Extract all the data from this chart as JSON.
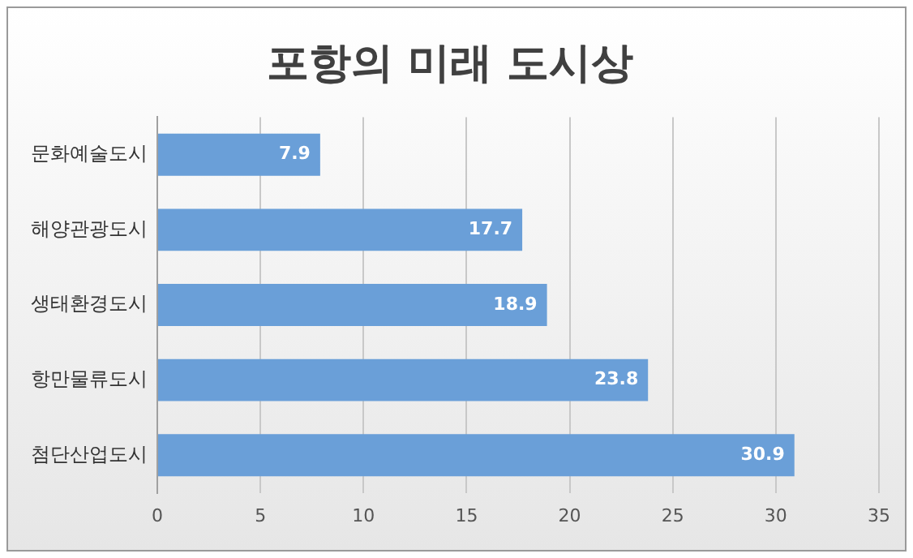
{
  "chart_data": {
    "type": "bar",
    "title": "포항의 미래 도시상",
    "orientation": "horizontal",
    "categories": [
      "문화예술도시",
      "해양관광도시",
      "생태환경도시",
      "항만물류도시",
      "첨단산업도시"
    ],
    "values": [
      7.9,
      17.7,
      18.9,
      23.8,
      30.9
    ],
    "color": "#6a9fd8",
    "xlim": [
      0,
      35
    ],
    "xticks": [
      0,
      5,
      10,
      15,
      20,
      25,
      30,
      35
    ],
    "grid": "x",
    "legend": false,
    "data_labels": true
  }
}
